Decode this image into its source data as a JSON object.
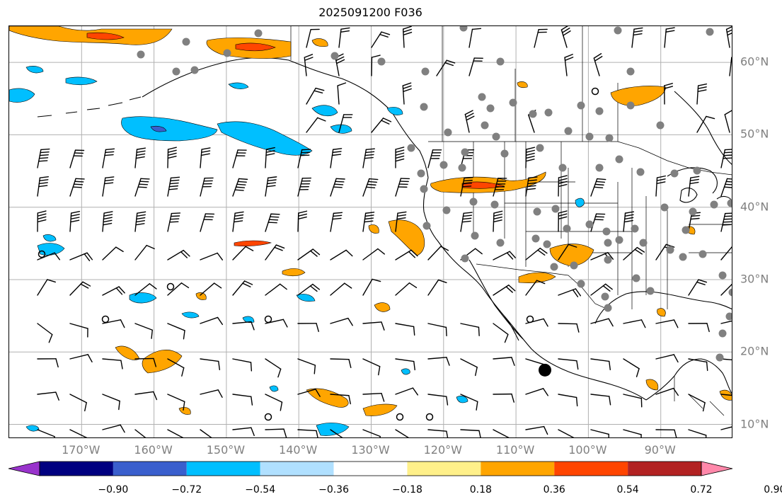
{
  "title": "2025091200 F036",
  "map": {
    "lon_range": [
      -180,
      -80
    ],
    "lat_range": [
      8,
      65
    ],
    "projection": "PlateCarree",
    "grid": true,
    "lon_ticks": [
      {
        "value": -170,
        "label": "170°W"
      },
      {
        "value": -160,
        "label": "160°W"
      },
      {
        "value": -150,
        "label": "150°W"
      },
      {
        "value": -140,
        "label": "140°W"
      },
      {
        "value": -130,
        "label": "130°W"
      },
      {
        "value": -120,
        "label": "120°W"
      },
      {
        "value": -110,
        "label": "110°W"
      },
      {
        "value": -100,
        "label": "100°W"
      },
      {
        "value": -90,
        "label": "90°W"
      }
    ],
    "lat_ticks": [
      {
        "value": 60,
        "label": "60°N"
      },
      {
        "value": 50,
        "label": "50°N"
      },
      {
        "value": 40,
        "label": "40°N"
      },
      {
        "value": 30,
        "label": "30°N"
      },
      {
        "value": 20,
        "label": "20°N"
      },
      {
        "value": 10,
        "label": "10°N"
      }
    ],
    "station_color": "#808080",
    "marker": {
      "lon": -106,
      "lat": 17.5,
      "color": "#000000"
    }
  },
  "colorbar": {
    "extend": "both",
    "colors": [
      "#9933cc",
      "#000080",
      "#3a5fcd",
      "#00bfff",
      "#b0e0ff",
      "#ffffff",
      "#fff08a",
      "#ffa500",
      "#ff4500",
      "#b22222",
      "#ff88aa"
    ],
    "ticks": [
      "−0.90",
      "−0.72",
      "−0.54",
      "−0.36",
      "−0.18",
      "0.18",
      "0.36",
      "0.54",
      "0.72",
      "0.90"
    ]
  }
}
